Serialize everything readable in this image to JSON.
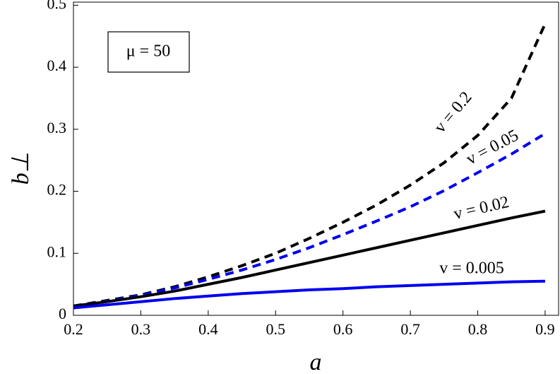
{
  "chart_data": {
    "type": "line",
    "xlabel": "a",
    "ylabel": "b⊥",
    "annotation": "μ = 50",
    "x": [
      0.2,
      0.25,
      0.3,
      0.35,
      0.4,
      0.45,
      0.5,
      0.55,
      0.6,
      0.65,
      0.7,
      0.75,
      0.8,
      0.85,
      0.9
    ],
    "series": [
      {
        "name": "v = 0.2",
        "color": "#000000",
        "line_style": "dashed",
        "values": [
          0.015,
          0.024,
          0.033,
          0.046,
          0.062,
          0.08,
          0.1,
          0.124,
          0.15,
          0.178,
          0.21,
          0.246,
          0.29,
          0.35,
          0.47
        ]
      },
      {
        "name": "v = 0.05",
        "color": "#0000ee",
        "line_style": "dashed",
        "values": [
          0.015,
          0.023,
          0.032,
          0.044,
          0.058,
          0.073,
          0.09,
          0.109,
          0.13,
          0.152,
          0.175,
          0.201,
          0.23,
          0.26,
          0.293
        ]
      },
      {
        "name": "v = 0.02",
        "color": "#000000",
        "line_style": "solid",
        "values": [
          0.015,
          0.022,
          0.03,
          0.039,
          0.05,
          0.061,
          0.073,
          0.085,
          0.097,
          0.109,
          0.121,
          0.133,
          0.145,
          0.157,
          0.168
        ]
      },
      {
        "name": "v = 0.005",
        "color": "#0000ee",
        "line_style": "solid",
        "values": [
          0.012,
          0.017,
          0.022,
          0.027,
          0.031,
          0.035,
          0.038,
          0.041,
          0.043,
          0.046,
          0.048,
          0.05,
          0.052,
          0.054,
          0.055
        ]
      }
    ],
    "xlim": [
      0.2,
      0.92
    ],
    "ylim": [
      0,
      0.505
    ],
    "xticks": [
      0.2,
      0.3,
      0.4,
      0.5,
      0.6,
      0.7,
      0.8,
      0.9
    ],
    "yticks": [
      0,
      0.1,
      0.2,
      0.3,
      0.4,
      0.5
    ],
    "grid": false
  }
}
